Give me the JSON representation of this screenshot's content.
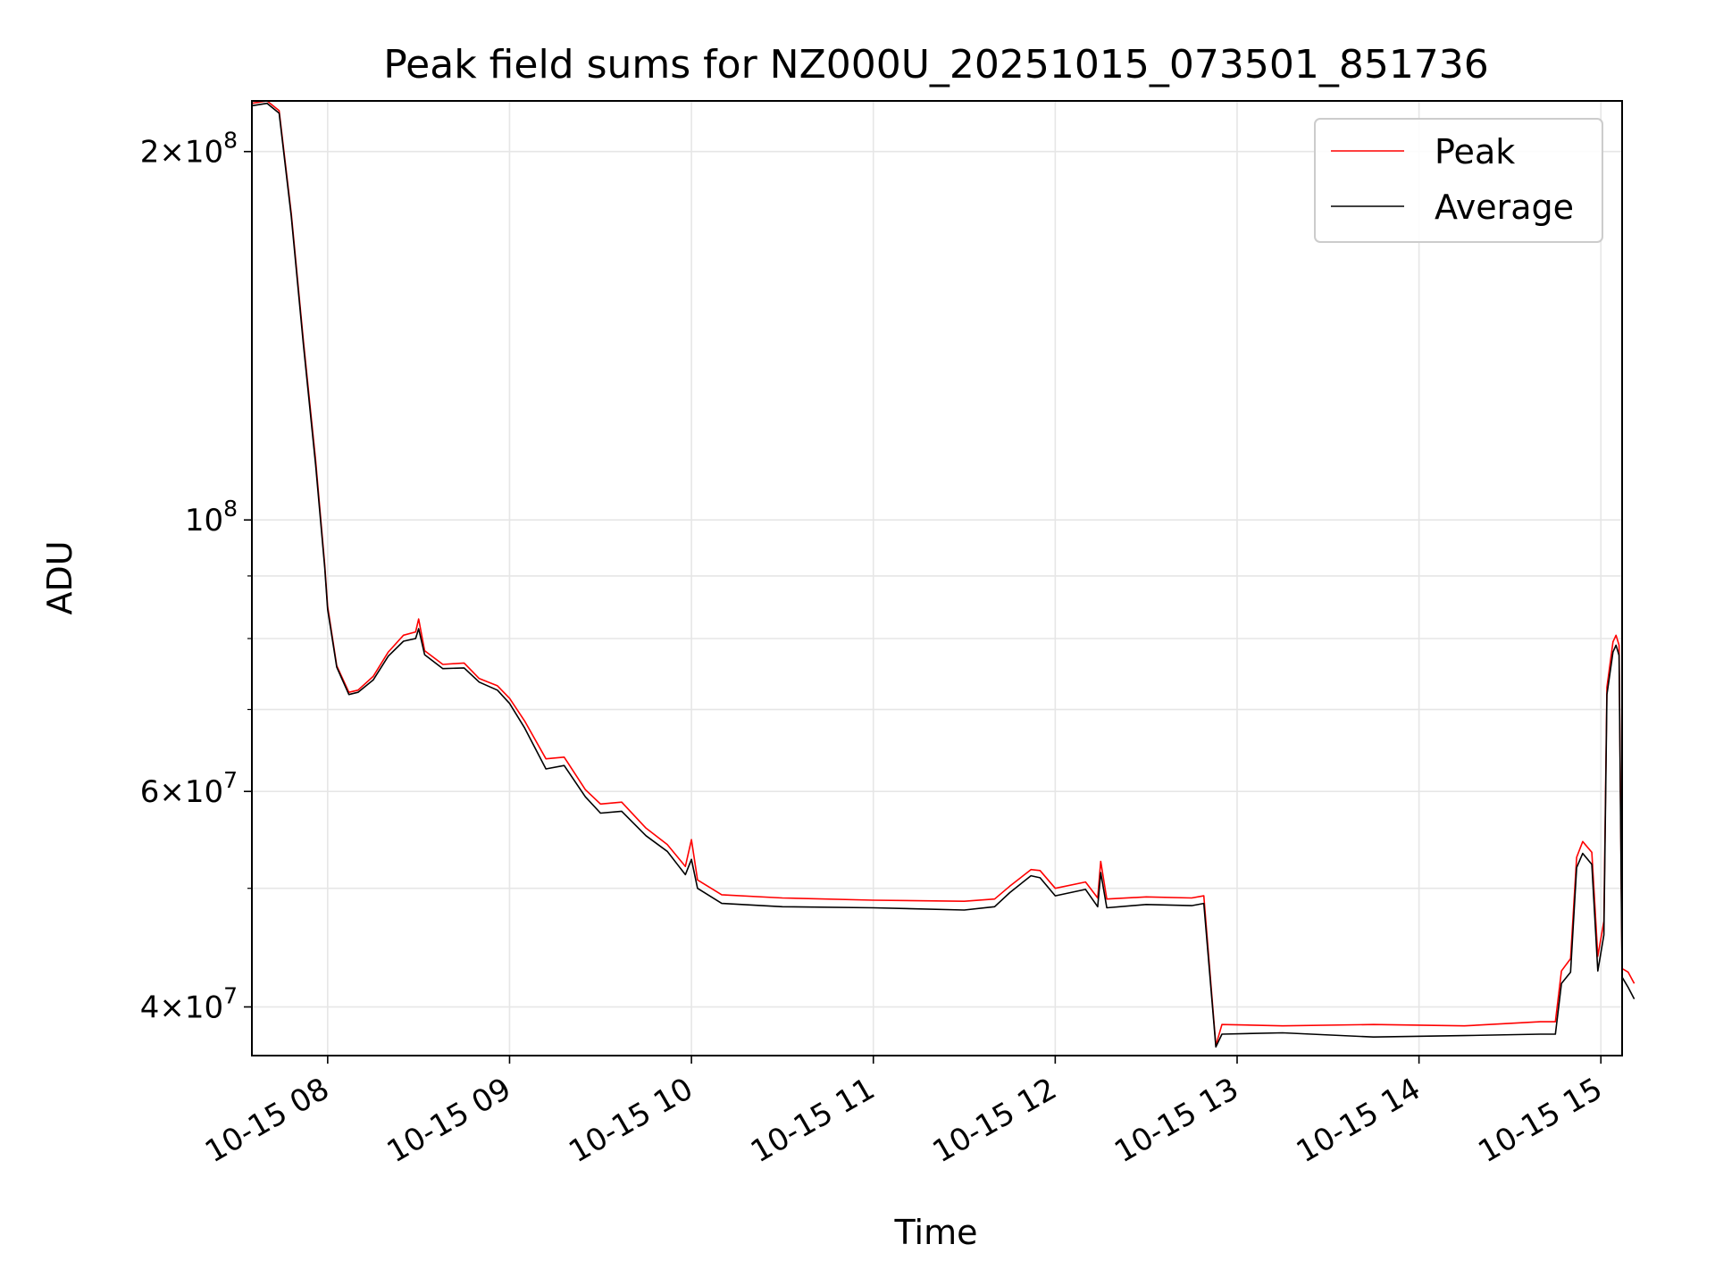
{
  "chart_data": {
    "type": "line",
    "title": "Peak field sums for NZ000U_20251015_073501_851736",
    "xlabel": "Time",
    "ylabel": "ADU",
    "y_scale": "log",
    "xlim": [
      "2025-10-15 07:35",
      "2025-10-15 15:07"
    ],
    "ylim": [
      36500000,
      220000000
    ],
    "x_ticks": [
      "10-15 08",
      "10-15 09",
      "10-15 10",
      "10-15 11",
      "10-15 12",
      "10-15 13",
      "10-15 14",
      "10-15 15"
    ],
    "y_major_ticks": [
      {
        "value": 40000000,
        "mantissa": "4",
        "exp": "7"
      },
      {
        "value": 60000000,
        "mantissa": "6",
        "exp": "7"
      },
      {
        "value": 100000000,
        "mantissa": "",
        "exp": "8"
      },
      {
        "value": 200000000,
        "mantissa": "2",
        "exp": "8"
      }
    ],
    "y_minor_gridlines": [
      50000000,
      70000000,
      80000000,
      90000000
    ],
    "grid": true,
    "legend_position": "top-right",
    "series": [
      {
        "name": "Peak",
        "color": "#ff0000",
        "points": [
          [
            "2025-10-15 07:35",
            219000000
          ],
          [
            "2025-10-15 07:40",
            220000000
          ],
          [
            "2025-10-15 07:44",
            216000000
          ],
          [
            "2025-10-15 07:48",
            178000000
          ],
          [
            "2025-10-15 07:52",
            140000000
          ],
          [
            "2025-10-15 07:56",
            112000000
          ],
          [
            "2025-10-15 07:59",
            92000000
          ],
          [
            "2025-10-15 08:00",
            85000000
          ],
          [
            "2025-10-15 08:03",
            76000000
          ],
          [
            "2025-10-15 08:07",
            72300000
          ],
          [
            "2025-10-15 08:10",
            72600000
          ],
          [
            "2025-10-15 08:15",
            74500000
          ],
          [
            "2025-10-15 08:20",
            78000000
          ],
          [
            "2025-10-15 08:25",
            80500000
          ],
          [
            "2025-10-15 08:29",
            81000000
          ],
          [
            "2025-10-15 08:30",
            83000000
          ],
          [
            "2025-10-15 08:32",
            78200000
          ],
          [
            "2025-10-15 08:38",
            76200000
          ],
          [
            "2025-10-15 08:45",
            76400000
          ],
          [
            "2025-10-15 08:50",
            74200000
          ],
          [
            "2025-10-15 08:56",
            73200000
          ],
          [
            "2025-10-15 09:00",
            71500000
          ],
          [
            "2025-10-15 09:05",
            68500000
          ],
          [
            "2025-10-15 09:12",
            63800000
          ],
          [
            "2025-10-15 09:18",
            64000000
          ],
          [
            "2025-10-15 09:25",
            60200000
          ],
          [
            "2025-10-15 09:30",
            58600000
          ],
          [
            "2025-10-15 09:37",
            58800000
          ],
          [
            "2025-10-15 09:45",
            56000000
          ],
          [
            "2025-10-15 09:52",
            54300000
          ],
          [
            "2025-10-15 09:58",
            52100000
          ],
          [
            "2025-10-15 10:00",
            54800000
          ],
          [
            "2025-10-15 10:02",
            50800000
          ],
          [
            "2025-10-15 10:10",
            49400000
          ],
          [
            "2025-10-15 10:30",
            49100000
          ],
          [
            "2025-10-15 11:00",
            48900000
          ],
          [
            "2025-10-15 11:30",
            48800000
          ],
          [
            "2025-10-15 11:40",
            49000000
          ],
          [
            "2025-10-15 11:45",
            50200000
          ],
          [
            "2025-10-15 11:52",
            51800000
          ],
          [
            "2025-10-15 11:55",
            51700000
          ],
          [
            "2025-10-15 12:00",
            50000000
          ],
          [
            "2025-10-15 12:10",
            50600000
          ],
          [
            "2025-10-15 12:14",
            49100000
          ],
          [
            "2025-10-15 12:15",
            52600000
          ],
          [
            "2025-10-15 12:17",
            49000000
          ],
          [
            "2025-10-15 12:30",
            49200000
          ],
          [
            "2025-10-15 12:45",
            49100000
          ],
          [
            "2025-10-15 12:49",
            49300000
          ],
          [
            "2025-10-15 12:53",
            37200000
          ],
          [
            "2025-10-15 12:55",
            38700000
          ],
          [
            "2025-10-15 13:15",
            38600000
          ],
          [
            "2025-10-15 13:45",
            38700000
          ],
          [
            "2025-10-15 14:15",
            38600000
          ],
          [
            "2025-10-15 14:40",
            38900000
          ],
          [
            "2025-10-15 14:45",
            38900000
          ],
          [
            "2025-10-15 14:47",
            42800000
          ],
          [
            "2025-10-15 14:50",
            43800000
          ],
          [
            "2025-10-15 14:52",
            53000000
          ],
          [
            "2025-10-15 14:54",
            54600000
          ],
          [
            "2025-10-15 14:57",
            53500000
          ],
          [
            "2025-10-15 14:59",
            44000000
          ],
          [
            "2025-10-15 15:01",
            47000000
          ],
          [
            "2025-10-15 15:02",
            73000000
          ],
          [
            "2025-10-15 15:04",
            79500000
          ],
          [
            "2025-10-15 15:05",
            80500000
          ],
          [
            "2025-10-15 15:06",
            79000000
          ],
          [
            "2025-10-15 15:07",
            43000000
          ],
          [
            "2025-10-15 15:09",
            42700000
          ],
          [
            "2025-10-15 15:11",
            41800000
          ]
        ]
      },
      {
        "name": "Average",
        "color": "#000000",
        "points": [
          [
            "2025-10-15 07:35",
            218000000
          ],
          [
            "2025-10-15 07:40",
            219000000
          ],
          [
            "2025-10-15 07:44",
            215000000
          ],
          [
            "2025-10-15 07:48",
            177000000
          ],
          [
            "2025-10-15 07:52",
            139000000
          ],
          [
            "2025-10-15 07:56",
            111000000
          ],
          [
            "2025-10-15 07:59",
            91500000
          ],
          [
            "2025-10-15 08:00",
            84500000
          ],
          [
            "2025-10-15 08:03",
            75800000
          ],
          [
            "2025-10-15 08:07",
            72000000
          ],
          [
            "2025-10-15 08:10",
            72300000
          ],
          [
            "2025-10-15 08:15",
            74000000
          ],
          [
            "2025-10-15 08:20",
            77400000
          ],
          [
            "2025-10-15 08:25",
            79600000
          ],
          [
            "2025-10-15 08:29",
            80000000
          ],
          [
            "2025-10-15 08:30",
            81500000
          ],
          [
            "2025-10-15 08:32",
            77600000
          ],
          [
            "2025-10-15 08:38",
            75600000
          ],
          [
            "2025-10-15 08:45",
            75700000
          ],
          [
            "2025-10-15 08:50",
            73700000
          ],
          [
            "2025-10-15 08:56",
            72600000
          ],
          [
            "2025-10-15 09:00",
            70800000
          ],
          [
            "2025-10-15 09:05",
            67600000
          ],
          [
            "2025-10-15 09:12",
            62600000
          ],
          [
            "2025-10-15 09:18",
            63000000
          ],
          [
            "2025-10-15 09:25",
            59400000
          ],
          [
            "2025-10-15 09:30",
            57600000
          ],
          [
            "2025-10-15 09:37",
            57800000
          ],
          [
            "2025-10-15 09:45",
            55200000
          ],
          [
            "2025-10-15 09:52",
            53600000
          ],
          [
            "2025-10-15 09:58",
            51300000
          ],
          [
            "2025-10-15 10:00",
            52800000
          ],
          [
            "2025-10-15 10:02",
            50000000
          ],
          [
            "2025-10-15 10:10",
            48600000
          ],
          [
            "2025-10-15 10:30",
            48300000
          ],
          [
            "2025-10-15 11:00",
            48200000
          ],
          [
            "2025-10-15 11:30",
            48000000
          ],
          [
            "2025-10-15 11:40",
            48300000
          ],
          [
            "2025-10-15 11:45",
            49600000
          ],
          [
            "2025-10-15 11:52",
            51200000
          ],
          [
            "2025-10-15 11:55",
            51000000
          ],
          [
            "2025-10-15 12:00",
            49300000
          ],
          [
            "2025-10-15 12:10",
            49900000
          ],
          [
            "2025-10-15 12:14",
            48300000
          ],
          [
            "2025-10-15 12:15",
            51500000
          ],
          [
            "2025-10-15 12:17",
            48200000
          ],
          [
            "2025-10-15 12:30",
            48500000
          ],
          [
            "2025-10-15 12:45",
            48400000
          ],
          [
            "2025-10-15 12:49",
            48600000
          ],
          [
            "2025-10-15 12:53",
            37100000
          ],
          [
            "2025-10-15 12:55",
            38000000
          ],
          [
            "2025-10-15 13:15",
            38100000
          ],
          [
            "2025-10-15 13:45",
            37800000
          ],
          [
            "2025-10-15 14:15",
            37900000
          ],
          [
            "2025-10-15 14:40",
            38000000
          ],
          [
            "2025-10-15 14:45",
            38000000
          ],
          [
            "2025-10-15 14:47",
            41800000
          ],
          [
            "2025-10-15 14:50",
            42700000
          ],
          [
            "2025-10-15 14:52",
            52000000
          ],
          [
            "2025-10-15 14:54",
            53400000
          ],
          [
            "2025-10-15 14:57",
            52300000
          ],
          [
            "2025-10-15 14:59",
            42800000
          ],
          [
            "2025-10-15 15:01",
            45800000
          ],
          [
            "2025-10-15 15:02",
            72000000
          ],
          [
            "2025-10-15 15:04",
            78000000
          ],
          [
            "2025-10-15 15:05",
            79000000
          ],
          [
            "2025-10-15 15:06",
            77500000
          ],
          [
            "2025-10-15 15:07",
            42300000
          ],
          [
            "2025-10-15 15:09",
            41500000
          ],
          [
            "2025-10-15 15:11",
            40600000
          ]
        ]
      }
    ]
  }
}
